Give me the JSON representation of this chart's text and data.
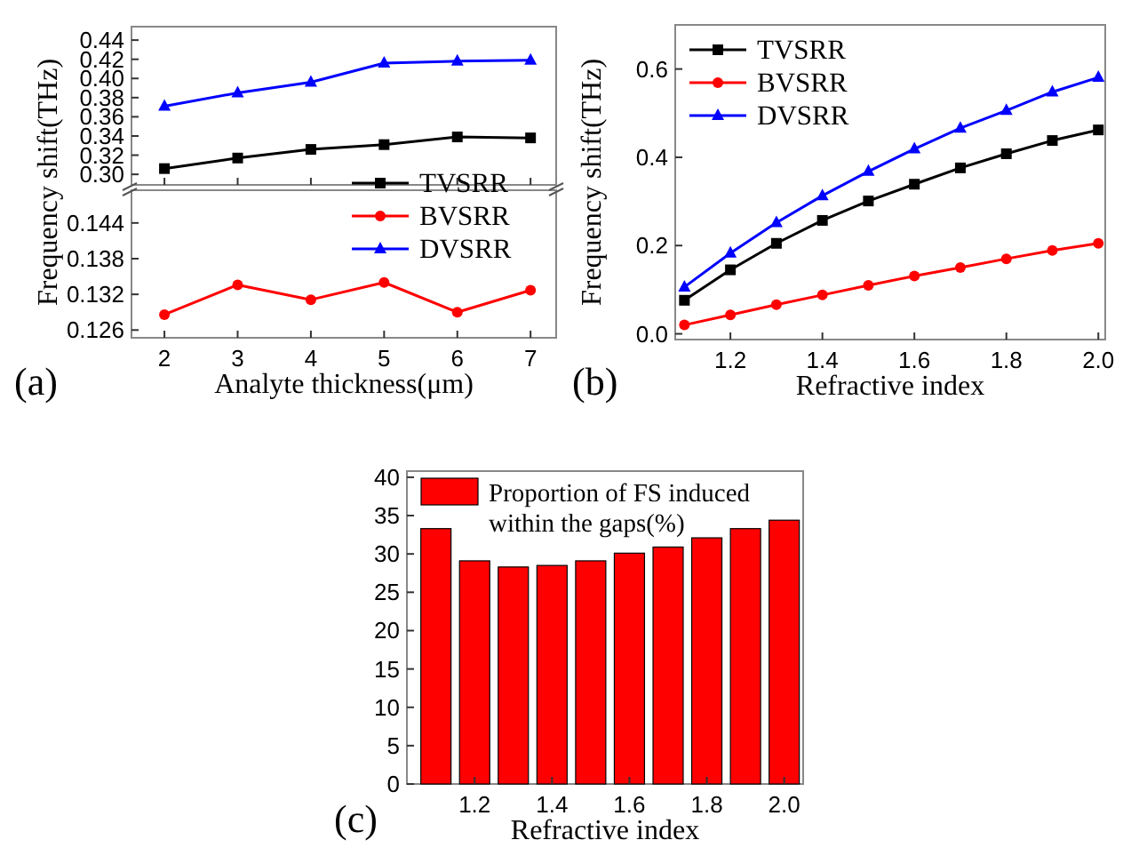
{
  "chart_data": [
    {
      "type": "line",
      "ylabel": "Frequency shift(THz)",
      "x": [
        2,
        3,
        4,
        5,
        6,
        7
      ],
      "xlim": [
        1.55,
        7.35
      ],
      "xticks": [
        2,
        3,
        4,
        5,
        6,
        7
      ],
      "ylim": [
        0.289,
        0.454
      ],
      "yticks": [
        {
          "value": 0.3,
          "label": "0.30"
        },
        {
          "value": 0.32,
          "label": "0.32"
        },
        {
          "value": 0.34,
          "label": "0.34"
        },
        {
          "value": 0.36,
          "label": "0.36"
        },
        {
          "value": 0.38,
          "label": "0.38"
        },
        {
          "value": 0.4,
          "label": "0.40"
        },
        {
          "value": 0.42,
          "label": "0.42"
        },
        {
          "value": 0.44,
          "label": "0.44"
        }
      ],
      "tick_labels": "y",
      "legend": false,
      "grid": false,
      "series": [
        {
          "color": "#000000",
          "marker": "square",
          "values": [
            0.306,
            0.317,
            0.326,
            0.331,
            0.339,
            0.338
          ]
        },
        {
          "color": "#0000ff",
          "marker": "triangle",
          "values": [
            0.371,
            0.385,
            0.396,
            0.416,
            0.418,
            0.419
          ]
        }
      ]
    },
    {
      "type": "line",
      "xlabel": "Analyte thickness(μm)",
      "x": [
        2,
        3,
        4,
        5,
        6,
        7
      ],
      "xlim": [
        1.55,
        7.35
      ],
      "xticks": [
        2,
        3,
        4,
        5,
        6,
        7
      ],
      "ylim": [
        0.1247,
        0.1495
      ],
      "yticks": [
        {
          "value": 0.126,
          "label": "0.126"
        },
        {
          "value": 0.132,
          "label": "0.132"
        },
        {
          "value": 0.138,
          "label": "0.138"
        },
        {
          "value": 0.144,
          "label": "0.144"
        }
      ],
      "legend": "top right",
      "grid": false,
      "annotations": [
        "(a)"
      ],
      "series": [
        {
          "name": "TVSRR",
          "color": "#000000",
          "marker": "square",
          "values": [
            null,
            null,
            null,
            null,
            null,
            null
          ]
        },
        {
          "name": "BVSRR",
          "color": "#ff0000",
          "marker": "circle",
          "values": [
            0.1286,
            0.1336,
            0.1311,
            0.134,
            0.129,
            0.1327
          ]
        },
        {
          "name": "DVSRR",
          "color": "#0000ff",
          "marker": "triangle",
          "values": [
            null,
            null,
            null,
            null,
            null,
            null
          ]
        }
      ]
    },
    {
      "type": "line",
      "xlabel": "Refractive index",
      "ylabel": "Frequency shift(THz)",
      "x": [
        1.1,
        1.2,
        1.3,
        1.4,
        1.5,
        1.6,
        1.7,
        1.8,
        1.9,
        2.0
      ],
      "xlim": [
        1.08,
        2.015
      ],
      "xticks": [
        1.2,
        1.4,
        1.6,
        1.8,
        {
          "value": 2.0,
          "label": "2.0"
        }
      ],
      "ylim": [
        -0.013,
        0.7
      ],
      "yticks": [
        {
          "value": 0,
          "label": "0.0"
        },
        0.2,
        0.4,
        0.6
      ],
      "legend": "top left",
      "grid": false,
      "annotations": [
        "(b)"
      ],
      "series": [
        {
          "name": "TVSRR",
          "color": "#000000",
          "marker": "square",
          "values": [
            0.076,
            0.145,
            0.205,
            0.257,
            0.301,
            0.339,
            0.376,
            0.408,
            0.438,
            0.462
          ]
        },
        {
          "name": "BVSRR",
          "color": "#ff0000",
          "marker": "circle",
          "values": [
            0.02,
            0.043,
            0.066,
            0.088,
            0.11,
            0.131,
            0.15,
            0.17,
            0.189,
            0.205
          ]
        },
        {
          "name": "DVSRR",
          "color": "#0000ff",
          "marker": "triangle",
          "values": [
            0.106,
            0.183,
            0.252,
            0.313,
            0.368,
            0.419,
            0.466,
            0.506,
            0.548,
            0.581
          ]
        }
      ]
    },
    {
      "type": "bar",
      "xlabel": "Refractive index",
      "x": [
        1.1,
        1.2,
        1.3,
        1.4,
        1.5,
        1.6,
        1.7,
        1.8,
        1.9,
        2.0
      ],
      "xlim": [
        1.025,
        2.049
      ],
      "xticks": [
        1.2,
        1.4,
        1.6,
        1.8,
        {
          "value": 2.0,
          "label": "2.0"
        }
      ],
      "ylim": [
        0,
        40.8
      ],
      "yticks": [
        0,
        5,
        10,
        15,
        20,
        25,
        30,
        35,
        40
      ],
      "legend": "top left",
      "grid": false,
      "annotations": [
        "(c)"
      ],
      "series": [
        {
          "name": "Proportion of FS induced within the gaps(%)",
          "color": "#ff0000",
          "values": [
            33.3,
            29.1,
            28.3,
            28.5,
            29.1,
            30.1,
            30.9,
            32.1,
            33.3,
            34.4
          ]
        }
      ]
    }
  ]
}
